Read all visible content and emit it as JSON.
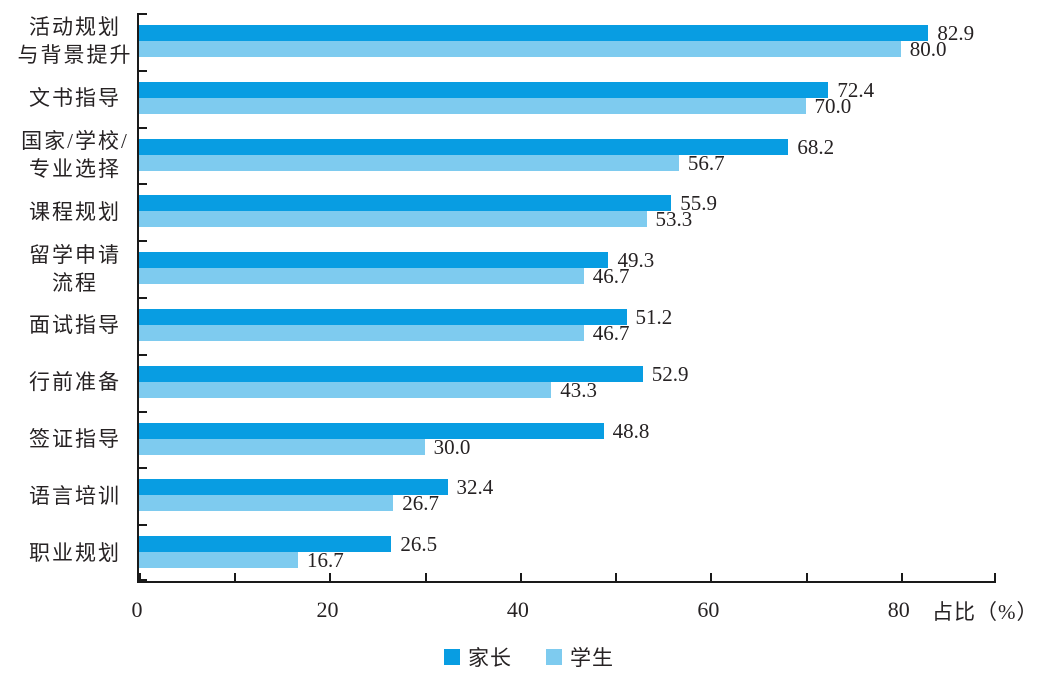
{
  "chart_data": {
    "type": "bar",
    "orientation": "horizontal",
    "title": "",
    "categories": [
      "活动规划\n与背景提升",
      "文书指导",
      "国家/学校/\n专业选择",
      "课程规划",
      "留学申请\n流程",
      "面试指导",
      "行前准备",
      "签证指导",
      "语言培训",
      "职业规划"
    ],
    "series": [
      {
        "name": "家长",
        "color": "#089de2",
        "values": [
          82.9,
          72.4,
          68.2,
          55.9,
          49.3,
          51.2,
          52.9,
          48.8,
          32.4,
          26.5
        ],
        "value_labels": [
          "82.9",
          "72.4",
          "68.2",
          "55.9",
          "49.3",
          "51.2",
          "52.9",
          "48.8",
          "32.4",
          "26.5"
        ]
      },
      {
        "name": "学生",
        "color": "#7ecbef",
        "values": [
          80.0,
          70.0,
          56.7,
          53.3,
          46.7,
          46.7,
          43.3,
          30.0,
          26.7,
          16.7
        ],
        "value_labels": [
          "80.0",
          "70.0",
          "56.7",
          "53.3",
          "46.7",
          "46.7",
          "43.3",
          "30.0",
          "26.7",
          "16.7"
        ]
      }
    ],
    "x_axis": {
      "min": 0,
      "max": 90,
      "minor_tick_step": 10,
      "labeled_ticks": [
        "0",
        "20",
        "40",
        "60",
        "80"
      ],
      "label": "占比（%）"
    },
    "legend": {
      "position": "bottom-center",
      "items": [
        "家长",
        "学生"
      ]
    },
    "grid": false,
    "value_labels_shown": true,
    "colors": {
      "parent_bar": "#089de2",
      "student_bar": "#7ecbef",
      "axis": "#1a1a1a",
      "text": "#262223",
      "background": "#ffffff"
    }
  }
}
